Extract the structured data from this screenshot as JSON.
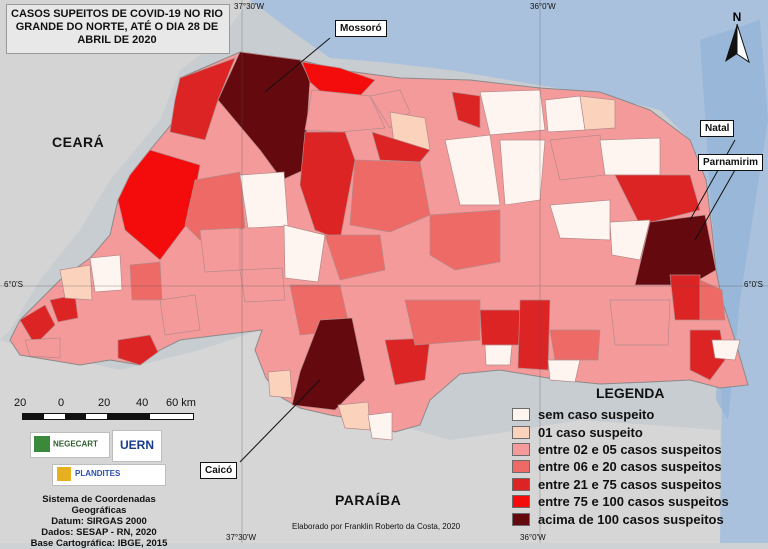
{
  "title": "CASOS SUPEITOS DE COVID-19 NO RIO GRANDE DO NORTE, ATÉ O DIA 28 DE ABRIL DE 2020",
  "graticule": {
    "top_left": "37°30'W",
    "top_right": "36°0'W",
    "bottom_left": "37°30'W",
    "bottom_right": "36°0'W",
    "left": "6°0'S",
    "right": "6°0'S"
  },
  "states": {
    "west": "CEARÁ",
    "south": "PARAÍBA"
  },
  "callouts": {
    "mossoro": "Mossoró",
    "natal": "Natal",
    "parnamirim": "Parnamirim",
    "caico": "Caicó"
  },
  "north_arrow": "N",
  "legend": {
    "title": "LEGENDA",
    "items": [
      {
        "label": "sem caso suspeito",
        "color": "#fff5f0"
      },
      {
        "label": "01 caso suspeito",
        "color": "#fbd3bd"
      },
      {
        "label": "entre 02 e 05 casos suspeitos",
        "color": "#f59a9a"
      },
      {
        "label": "entre 06 e 20 casos suspeitos",
        "color": "#ee6a66"
      },
      {
        "label": "entre 21 e 75 casos suspeitos",
        "color": "#dc2424"
      },
      {
        "label": "entre 75 e 100 casos suspeitos",
        "color": "#f40b0b"
      },
      {
        "label": "acima de 100 casos suspeitos",
        "color": "#640a0f"
      }
    ]
  },
  "scale_bar": {
    "labels": [
      "20",
      "0",
      "20",
      "40",
      "60 km"
    ]
  },
  "logos": {
    "negecart": "NEGECART",
    "uern": "UERN",
    "plandites": "PLANDITES"
  },
  "info_lines": [
    "Sistema de Coordenadas Geográficas",
    "Datum: SIRGAS 2000",
    "Dados: SESAP - RN, 2020",
    "Base Cartográfica: IBGE, 2015"
  ],
  "credit": "Elaborado por Franklin Roberto da Costa, 2020"
}
